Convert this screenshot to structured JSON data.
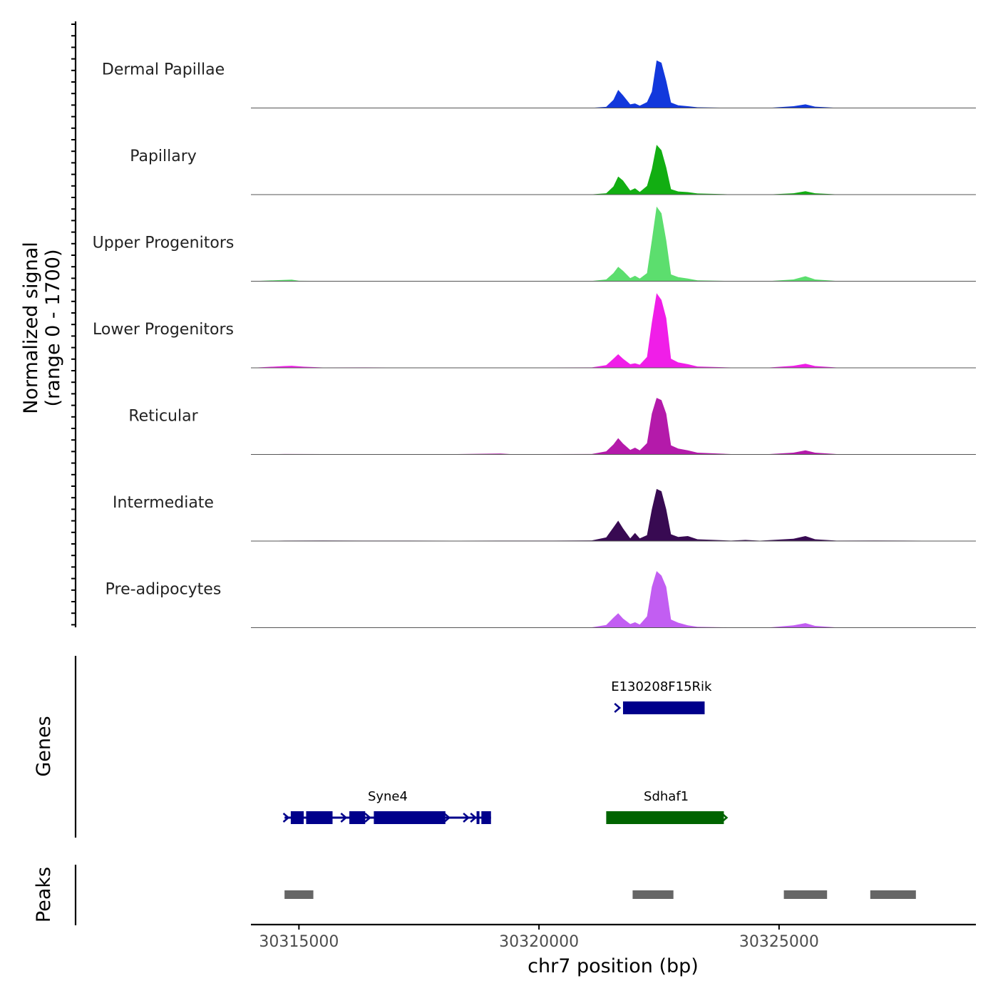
{
  "chart_data": {
    "type": "area",
    "title": "",
    "ylabel_line1": "Normalized signal",
    "ylabel_line2": "(range 0 - 1700)",
    "xlabel": "chr7 position (bp)",
    "y_range": [
      0,
      1700
    ],
    "xlim": [
      30314000,
      30329100
    ],
    "x_ticks": [
      30315000,
      30320000,
      30325000
    ],
    "x_tick_labels": [
      "30315000",
      "30320000",
      "30325000"
    ],
    "tracks": [
      {
        "name": "Dermal Papillae",
        "color": "#1238dc",
        "points": [
          [
            30314700,
            4
          ],
          [
            30315500,
            5
          ],
          [
            30316400,
            4
          ],
          [
            30317300,
            5
          ],
          [
            30318300,
            4
          ],
          [
            30319200,
            5
          ],
          [
            30320300,
            4
          ],
          [
            30321100,
            5
          ],
          [
            30321400,
            25
          ],
          [
            30321550,
            180
          ],
          [
            30321650,
            400
          ],
          [
            30321750,
            280
          ],
          [
            30321900,
            80
          ],
          [
            30322000,
            100
          ],
          [
            30322100,
            50
          ],
          [
            30322250,
            130
          ],
          [
            30322350,
            360
          ],
          [
            30322450,
            1050
          ],
          [
            30322550,
            1000
          ],
          [
            30322650,
            600
          ],
          [
            30322750,
            120
          ],
          [
            30322900,
            60
          ],
          [
            30323100,
            40
          ],
          [
            30323300,
            15
          ],
          [
            30324000,
            5
          ],
          [
            30324800,
            4
          ],
          [
            30325300,
            40
          ],
          [
            30325550,
            80
          ],
          [
            30325750,
            30
          ],
          [
            30326200,
            5
          ],
          [
            30327000,
            4
          ],
          [
            30328000,
            8
          ],
          [
            30329100,
            3
          ]
        ]
      },
      {
        "name": "Papillary",
        "color": "#12ae12",
        "points": [
          [
            30314700,
            3
          ],
          [
            30315500,
            5
          ],
          [
            30316400,
            4
          ],
          [
            30317300,
            5
          ],
          [
            30318300,
            4
          ],
          [
            30319200,
            5
          ],
          [
            30320300,
            4
          ],
          [
            30321100,
            6
          ],
          [
            30321400,
            30
          ],
          [
            30321550,
            180
          ],
          [
            30321650,
            400
          ],
          [
            30321750,
            310
          ],
          [
            30321900,
            90
          ],
          [
            30322000,
            140
          ],
          [
            30322100,
            60
          ],
          [
            30322250,
            190
          ],
          [
            30322350,
            560
          ],
          [
            30322450,
            1100
          ],
          [
            30322550,
            980
          ],
          [
            30322650,
            600
          ],
          [
            30322750,
            120
          ],
          [
            30322900,
            70
          ],
          [
            30323100,
            55
          ],
          [
            30323300,
            25
          ],
          [
            30324000,
            6
          ],
          [
            30324800,
            5
          ],
          [
            30325300,
            30
          ],
          [
            30325550,
            75
          ],
          [
            30325750,
            30
          ],
          [
            30326200,
            6
          ],
          [
            30327000,
            4
          ],
          [
            30328000,
            6
          ],
          [
            30329100,
            3
          ]
        ]
      },
      {
        "name": "Upper Progenitors",
        "color": "#5cde6e",
        "points": [
          [
            30314700,
            30
          ],
          [
            30314850,
            35
          ],
          [
            30315000,
            10
          ],
          [
            30315500,
            6
          ],
          [
            30316400,
            5
          ],
          [
            30317300,
            5
          ],
          [
            30318300,
            5
          ],
          [
            30319200,
            5
          ],
          [
            30320300,
            5
          ],
          [
            30321100,
            6
          ],
          [
            30321400,
            40
          ],
          [
            30321550,
            180
          ],
          [
            30321650,
            320
          ],
          [
            30321750,
            230
          ],
          [
            30321900,
            70
          ],
          [
            30322000,
            120
          ],
          [
            30322100,
            60
          ],
          [
            30322250,
            180
          ],
          [
            30322350,
            900
          ],
          [
            30322450,
            1650
          ],
          [
            30322550,
            1500
          ],
          [
            30322650,
            900
          ],
          [
            30322750,
            150
          ],
          [
            30322900,
            90
          ],
          [
            30323100,
            60
          ],
          [
            30323300,
            20
          ],
          [
            30324000,
            5
          ],
          [
            30324800,
            5
          ],
          [
            30325300,
            40
          ],
          [
            30325550,
            110
          ],
          [
            30325750,
            40
          ],
          [
            30326200,
            6
          ],
          [
            30327000,
            4
          ],
          [
            30328000,
            6
          ],
          [
            30329100,
            3
          ]
        ]
      },
      {
        "name": "Lower Progenitors",
        "color": "#f01ee8",
        "points": [
          [
            30314700,
            40
          ],
          [
            30314850,
            45
          ],
          [
            30315100,
            25
          ],
          [
            30315500,
            8
          ],
          [
            30316400,
            10
          ],
          [
            30317300,
            6
          ],
          [
            30318300,
            8
          ],
          [
            30319200,
            6
          ],
          [
            30320300,
            8
          ],
          [
            30321100,
            10
          ],
          [
            30321400,
            60
          ],
          [
            30321550,
            200
          ],
          [
            30321650,
            300
          ],
          [
            30321750,
            200
          ],
          [
            30321900,
            80
          ],
          [
            30322000,
            100
          ],
          [
            30322100,
            70
          ],
          [
            30322250,
            240
          ],
          [
            30322350,
            1000
          ],
          [
            30322450,
            1650
          ],
          [
            30322550,
            1500
          ],
          [
            30322650,
            1100
          ],
          [
            30322750,
            200
          ],
          [
            30322900,
            120
          ],
          [
            30323100,
            80
          ],
          [
            30323300,
            30
          ],
          [
            30324000,
            8
          ],
          [
            30324800,
            8
          ],
          [
            30325300,
            45
          ],
          [
            30325550,
            90
          ],
          [
            30325750,
            40
          ],
          [
            30326200,
            8
          ],
          [
            30327000,
            6
          ],
          [
            30328000,
            8
          ],
          [
            30329100,
            3
          ]
        ]
      },
      {
        "name": "Reticular",
        "color": "#b41aaa",
        "points": [
          [
            30314700,
            10
          ],
          [
            30315500,
            8
          ],
          [
            30316400,
            6
          ],
          [
            30317300,
            8
          ],
          [
            30318300,
            8
          ],
          [
            30319200,
            20
          ],
          [
            30319400,
            8
          ],
          [
            30320300,
            8
          ],
          [
            30321100,
            10
          ],
          [
            30321400,
            70
          ],
          [
            30321550,
            220
          ],
          [
            30321650,
            360
          ],
          [
            30321750,
            240
          ],
          [
            30321900,
            100
          ],
          [
            30322000,
            150
          ],
          [
            30322100,
            90
          ],
          [
            30322250,
            250
          ],
          [
            30322350,
            900
          ],
          [
            30322450,
            1250
          ],
          [
            30322550,
            1200
          ],
          [
            30322650,
            900
          ],
          [
            30322750,
            200
          ],
          [
            30322900,
            130
          ],
          [
            30323100,
            90
          ],
          [
            30323300,
            40
          ],
          [
            30324000,
            8
          ],
          [
            30324800,
            8
          ],
          [
            30325300,
            40
          ],
          [
            30325550,
            90
          ],
          [
            30325750,
            40
          ],
          [
            30326200,
            8
          ],
          [
            30327000,
            6
          ],
          [
            30328000,
            8
          ],
          [
            30329100,
            3
          ]
        ]
      },
      {
        "name": "Intermediate",
        "color": "#380a52",
        "points": [
          [
            30314700,
            10
          ],
          [
            30315500,
            12
          ],
          [
            30316400,
            10
          ],
          [
            30317300,
            10
          ],
          [
            30318300,
            8
          ],
          [
            30319200,
            10
          ],
          [
            30320300,
            10
          ],
          [
            30321100,
            14
          ],
          [
            30321400,
            80
          ],
          [
            30321550,
            300
          ],
          [
            30321650,
            450
          ],
          [
            30321750,
            280
          ],
          [
            30321900,
            60
          ],
          [
            30322000,
            180
          ],
          [
            30322100,
            60
          ],
          [
            30322250,
            130
          ],
          [
            30322350,
            700
          ],
          [
            30322450,
            1150
          ],
          [
            30322550,
            1100
          ],
          [
            30322650,
            700
          ],
          [
            30322750,
            150
          ],
          [
            30322900,
            90
          ],
          [
            30323100,
            110
          ],
          [
            30323300,
            40
          ],
          [
            30324000,
            10
          ],
          [
            30324300,
            25
          ],
          [
            30324600,
            8
          ],
          [
            30325300,
            50
          ],
          [
            30325550,
            110
          ],
          [
            30325750,
            40
          ],
          [
            30326200,
            10
          ],
          [
            30327000,
            12
          ],
          [
            30328000,
            8
          ],
          [
            30329100,
            3
          ]
        ]
      },
      {
        "name": "Pre-adipocytes",
        "color": "#c25ef2",
        "points": [
          [
            30314700,
            6
          ],
          [
            30315500,
            6
          ],
          [
            30316400,
            8
          ],
          [
            30317300,
            6
          ],
          [
            30318300,
            6
          ],
          [
            30319200,
            6
          ],
          [
            30320300,
            6
          ],
          [
            30321100,
            8
          ],
          [
            30321400,
            60
          ],
          [
            30321550,
            220
          ],
          [
            30321650,
            320
          ],
          [
            30321750,
            200
          ],
          [
            30321900,
            80
          ],
          [
            30322000,
            120
          ],
          [
            30322100,
            70
          ],
          [
            30322250,
            250
          ],
          [
            30322350,
            900
          ],
          [
            30322450,
            1250
          ],
          [
            30322550,
            1150
          ],
          [
            30322650,
            900
          ],
          [
            30322750,
            180
          ],
          [
            30322900,
            110
          ],
          [
            30323100,
            50
          ],
          [
            30323300,
            20
          ],
          [
            30324000,
            6
          ],
          [
            30324800,
            6
          ],
          [
            30325300,
            50
          ],
          [
            30325550,
            100
          ],
          [
            30325750,
            40
          ],
          [
            30326200,
            6
          ],
          [
            30327000,
            5
          ],
          [
            30328000,
            6
          ],
          [
            30329100,
            3
          ]
        ]
      }
    ],
    "genes_label": "Genes",
    "genes": [
      {
        "name": "E130208F15Rik",
        "color": "#00008b",
        "row": 1,
        "start": 30321650,
        "end": 30323450,
        "introns": [],
        "exons": [
          [
            30321750,
            30323450
          ]
        ],
        "arrows": [
          30321650
        ]
      },
      {
        "name": "Syne4",
        "color": "#00008b",
        "row": 2,
        "start": 30314700,
        "end": 30319000,
        "introns": [
          [
            30314700,
            30319000
          ]
        ],
        "exons": [
          [
            30314830,
            30315100
          ],
          [
            30315150,
            30315700
          ],
          [
            30316050,
            30316380
          ],
          [
            30316560,
            30318050
          ],
          [
            30318700,
            30318760
          ],
          [
            30318800,
            30319000
          ]
        ],
        "arrows": [
          30314750,
          30315950,
          30316450,
          30318100,
          30318500,
          30318650
        ]
      },
      {
        "name": "Sdhaf1",
        "color": "#006400",
        "row": 2,
        "start": 30321400,
        "end": 30323900,
        "introns": [],
        "exons": [
          [
            30321400,
            30323850
          ]
        ],
        "arrows": [
          30323880
        ]
      }
    ],
    "peaks_label": "Peaks",
    "peaks": [
      [
        30314700,
        30315300
      ],
      [
        30321950,
        30322800
      ],
      [
        30325100,
        30326000
      ],
      [
        30326900,
        30327850
      ]
    ]
  }
}
